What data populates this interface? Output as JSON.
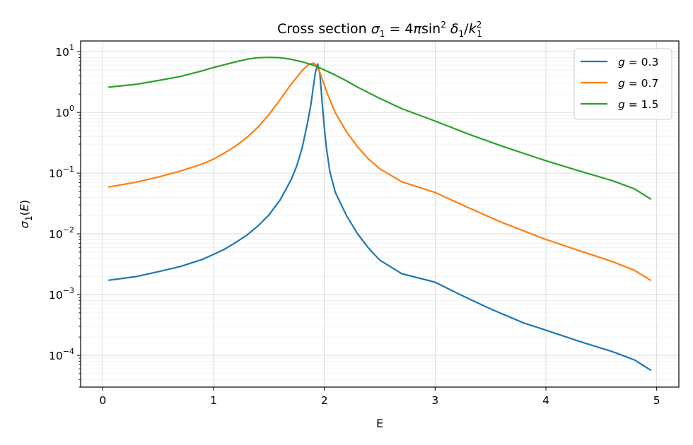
{
  "chart_data": {
    "type": "line",
    "title": "Cross section σ₁ = 4π sin² δ₁/k₁²",
    "xlabel": "E",
    "ylabel": "σ₁(E)",
    "xlim": [
      -0.2,
      5.2
    ],
    "ylim": [
      3e-05,
      15
    ],
    "yscale": "log",
    "grid": true,
    "legend_position": "top-right",
    "xticks": [
      {
        "value": 0,
        "label": "0"
      },
      {
        "value": 1,
        "label": "1"
      },
      {
        "value": 2,
        "label": "2"
      },
      {
        "value": 3,
        "label": "3"
      },
      {
        "value": 4,
        "label": "4"
      },
      {
        "value": 5,
        "label": "5"
      }
    ],
    "yticks": [
      {
        "value": 0.0001,
        "base": "10",
        "exp": "−4"
      },
      {
        "value": 0.001,
        "base": "10",
        "exp": "−3"
      },
      {
        "value": 0.01,
        "base": "10",
        "exp": "−2"
      },
      {
        "value": 0.1,
        "base": "10",
        "exp": "−1"
      },
      {
        "value": 1,
        "base": "10",
        "exp": "0"
      },
      {
        "value": 10,
        "base": "10",
        "exp": "1"
      }
    ],
    "series": [
      {
        "name": "g = 0.3",
        "color": "#1f77b4",
        "points": [
          [
            0.05,
            0.00172
          ],
          [
            0.3,
            0.00198
          ],
          [
            0.5,
            0.00238
          ],
          [
            0.7,
            0.0029
          ],
          [
            0.9,
            0.0038
          ],
          [
            1.0,
            0.0046
          ],
          [
            1.1,
            0.0056
          ],
          [
            1.2,
            0.0072
          ],
          [
            1.3,
            0.0095
          ],
          [
            1.4,
            0.0135
          ],
          [
            1.5,
            0.0205
          ],
          [
            1.6,
            0.036
          ],
          [
            1.7,
            0.078
          ],
          [
            1.75,
            0.13
          ],
          [
            1.8,
            0.26
          ],
          [
            1.85,
            0.7
          ],
          [
            1.88,
            1.4
          ],
          [
            1.9,
            2.6
          ],
          [
            1.92,
            4.6
          ],
          [
            1.94,
            6.3
          ],
          [
            1.96,
            4.2
          ],
          [
            1.98,
            1.5
          ],
          [
            2.0,
            0.55
          ],
          [
            2.02,
            0.25
          ],
          [
            2.05,
            0.105
          ],
          [
            2.1,
            0.048
          ],
          [
            2.2,
            0.02
          ],
          [
            2.3,
            0.01
          ],
          [
            2.4,
            0.0058
          ],
          [
            2.5,
            0.0037
          ],
          [
            2.7,
            0.0022
          ],
          [
            3.0,
            0.0016
          ],
          [
            3.2,
            0.00105
          ],
          [
            3.5,
            0.00058
          ],
          [
            3.8,
            0.00034
          ],
          [
            4.0,
            0.00026
          ],
          [
            4.3,
            0.00017
          ],
          [
            4.6,
            0.000115
          ],
          [
            4.8,
            8.4e-05
          ],
          [
            4.95,
            5.65e-05
          ]
        ]
      },
      {
        "name": "g = 0.7",
        "color": "#ff7f0e",
        "points": [
          [
            0.05,
            0.059
          ],
          [
            0.3,
            0.071
          ],
          [
            0.5,
            0.086
          ],
          [
            0.7,
            0.108
          ],
          [
            0.9,
            0.142
          ],
          [
            1.0,
            0.17
          ],
          [
            1.1,
            0.215
          ],
          [
            1.2,
            0.28
          ],
          [
            1.3,
            0.385
          ],
          [
            1.4,
            0.57
          ],
          [
            1.5,
            0.92
          ],
          [
            1.6,
            1.62
          ],
          [
            1.7,
            2.9
          ],
          [
            1.8,
            4.9
          ],
          [
            1.85,
            6.0
          ],
          [
            1.9,
            6.5
          ],
          [
            1.93,
            6.0
          ],
          [
            1.96,
            4.5
          ],
          [
            2.0,
            2.8
          ],
          [
            2.05,
            1.6
          ],
          [
            2.1,
            0.98
          ],
          [
            2.2,
            0.48
          ],
          [
            2.3,
            0.27
          ],
          [
            2.4,
            0.17
          ],
          [
            2.5,
            0.118
          ],
          [
            2.7,
            0.072
          ],
          [
            3.0,
            0.048
          ],
          [
            3.3,
            0.027
          ],
          [
            3.6,
            0.0155
          ],
          [
            4.0,
            0.0081
          ],
          [
            4.3,
            0.0053
          ],
          [
            4.6,
            0.0035
          ],
          [
            4.8,
            0.0025
          ],
          [
            4.95,
            0.0017
          ]
        ]
      },
      {
        "name": "g = 1.5",
        "color": "#2ca02c",
        "points": [
          [
            0.05,
            2.6
          ],
          [
            0.3,
            2.9
          ],
          [
            0.5,
            3.35
          ],
          [
            0.7,
            3.9
          ],
          [
            0.9,
            4.85
          ],
          [
            1.0,
            5.5
          ],
          [
            1.1,
            6.1
          ],
          [
            1.2,
            6.8
          ],
          [
            1.3,
            7.5
          ],
          [
            1.4,
            7.95
          ],
          [
            1.5,
            8.05
          ],
          [
            1.6,
            7.95
          ],
          [
            1.7,
            7.5
          ],
          [
            1.8,
            6.8
          ],
          [
            1.9,
            6.0
          ],
          [
            2.0,
            5.0
          ],
          [
            2.1,
            4.1
          ],
          [
            2.2,
            3.3
          ],
          [
            2.3,
            2.6
          ],
          [
            2.5,
            1.7
          ],
          [
            2.7,
            1.15
          ],
          [
            3.0,
            0.72
          ],
          [
            3.3,
            0.44
          ],
          [
            3.6,
            0.28
          ],
          [
            4.0,
            0.16
          ],
          [
            4.3,
            0.109
          ],
          [
            4.6,
            0.075
          ],
          [
            4.8,
            0.055
          ],
          [
            4.95,
            0.037
          ]
        ]
      }
    ]
  }
}
